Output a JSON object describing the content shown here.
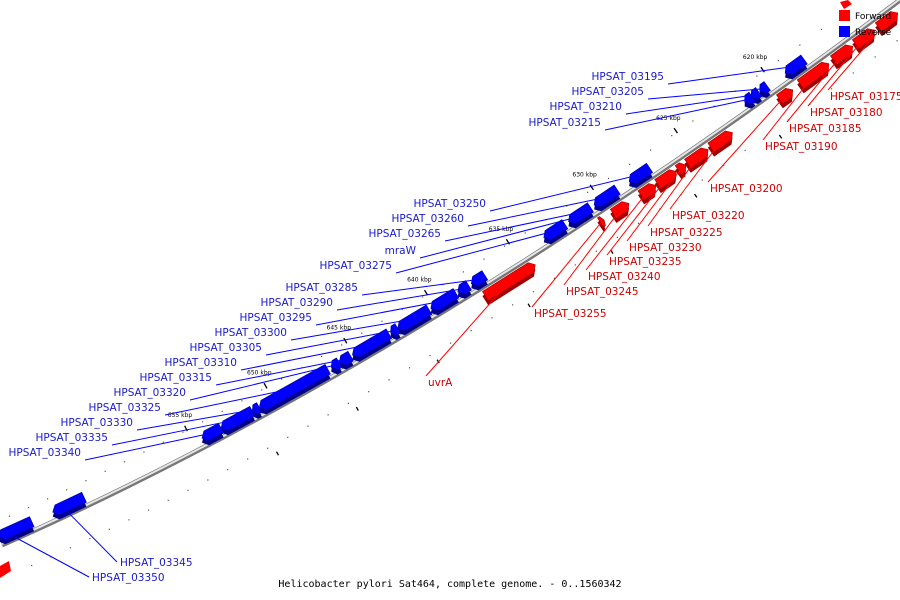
{
  "caption": "Helicobacter pylori Sat464, complete genome. - 0..1560342",
  "legend": [
    {
      "label": "Forward",
      "color": "#ff0000"
    },
    {
      "label": "Reverse",
      "color": "#0000ff"
    }
  ],
  "colors": {
    "forward": "#ff0000",
    "reverse": "#0000ff",
    "forward_label": "#cc0000",
    "reverse_label": "#1a1acc"
  },
  "ticks": [
    "620 kbp",
    "625 kbp",
    "630 kbp",
    "635 kbp",
    "640 kbp",
    "645 kbp",
    "650 kbp",
    "655 kbp"
  ],
  "reverse_genes": [
    "HPSAT_03195",
    "HPSAT_03205",
    "HPSAT_03210",
    "HPSAT_03215",
    "HPSAT_03250",
    "HPSAT_03260",
    "HPSAT_03265",
    "mraW",
    "HPSAT_03275",
    "HPSAT_03285",
    "HPSAT_03290",
    "HPSAT_03295",
    "HPSAT_03300",
    "HPSAT_03305",
    "HPSAT_03310",
    "HPSAT_03315",
    "HPSAT_03320",
    "HPSAT_03325",
    "HPSAT_03330",
    "HPSAT_03335",
    "HPSAT_03340",
    "HPSAT_03345",
    "HPSAT_03350"
  ],
  "forward_genes": [
    "HPSAT_03175",
    "HPSAT_03180",
    "HPSAT_03185",
    "HPSAT_03190",
    "HPSAT_03200",
    "HPSAT_03220",
    "HPSAT_03225",
    "HPSAT_03230",
    "HPSAT_03235",
    "HPSAT_03240",
    "HPSAT_03245",
    "HPSAT_03255",
    "uvrA"
  ]
}
